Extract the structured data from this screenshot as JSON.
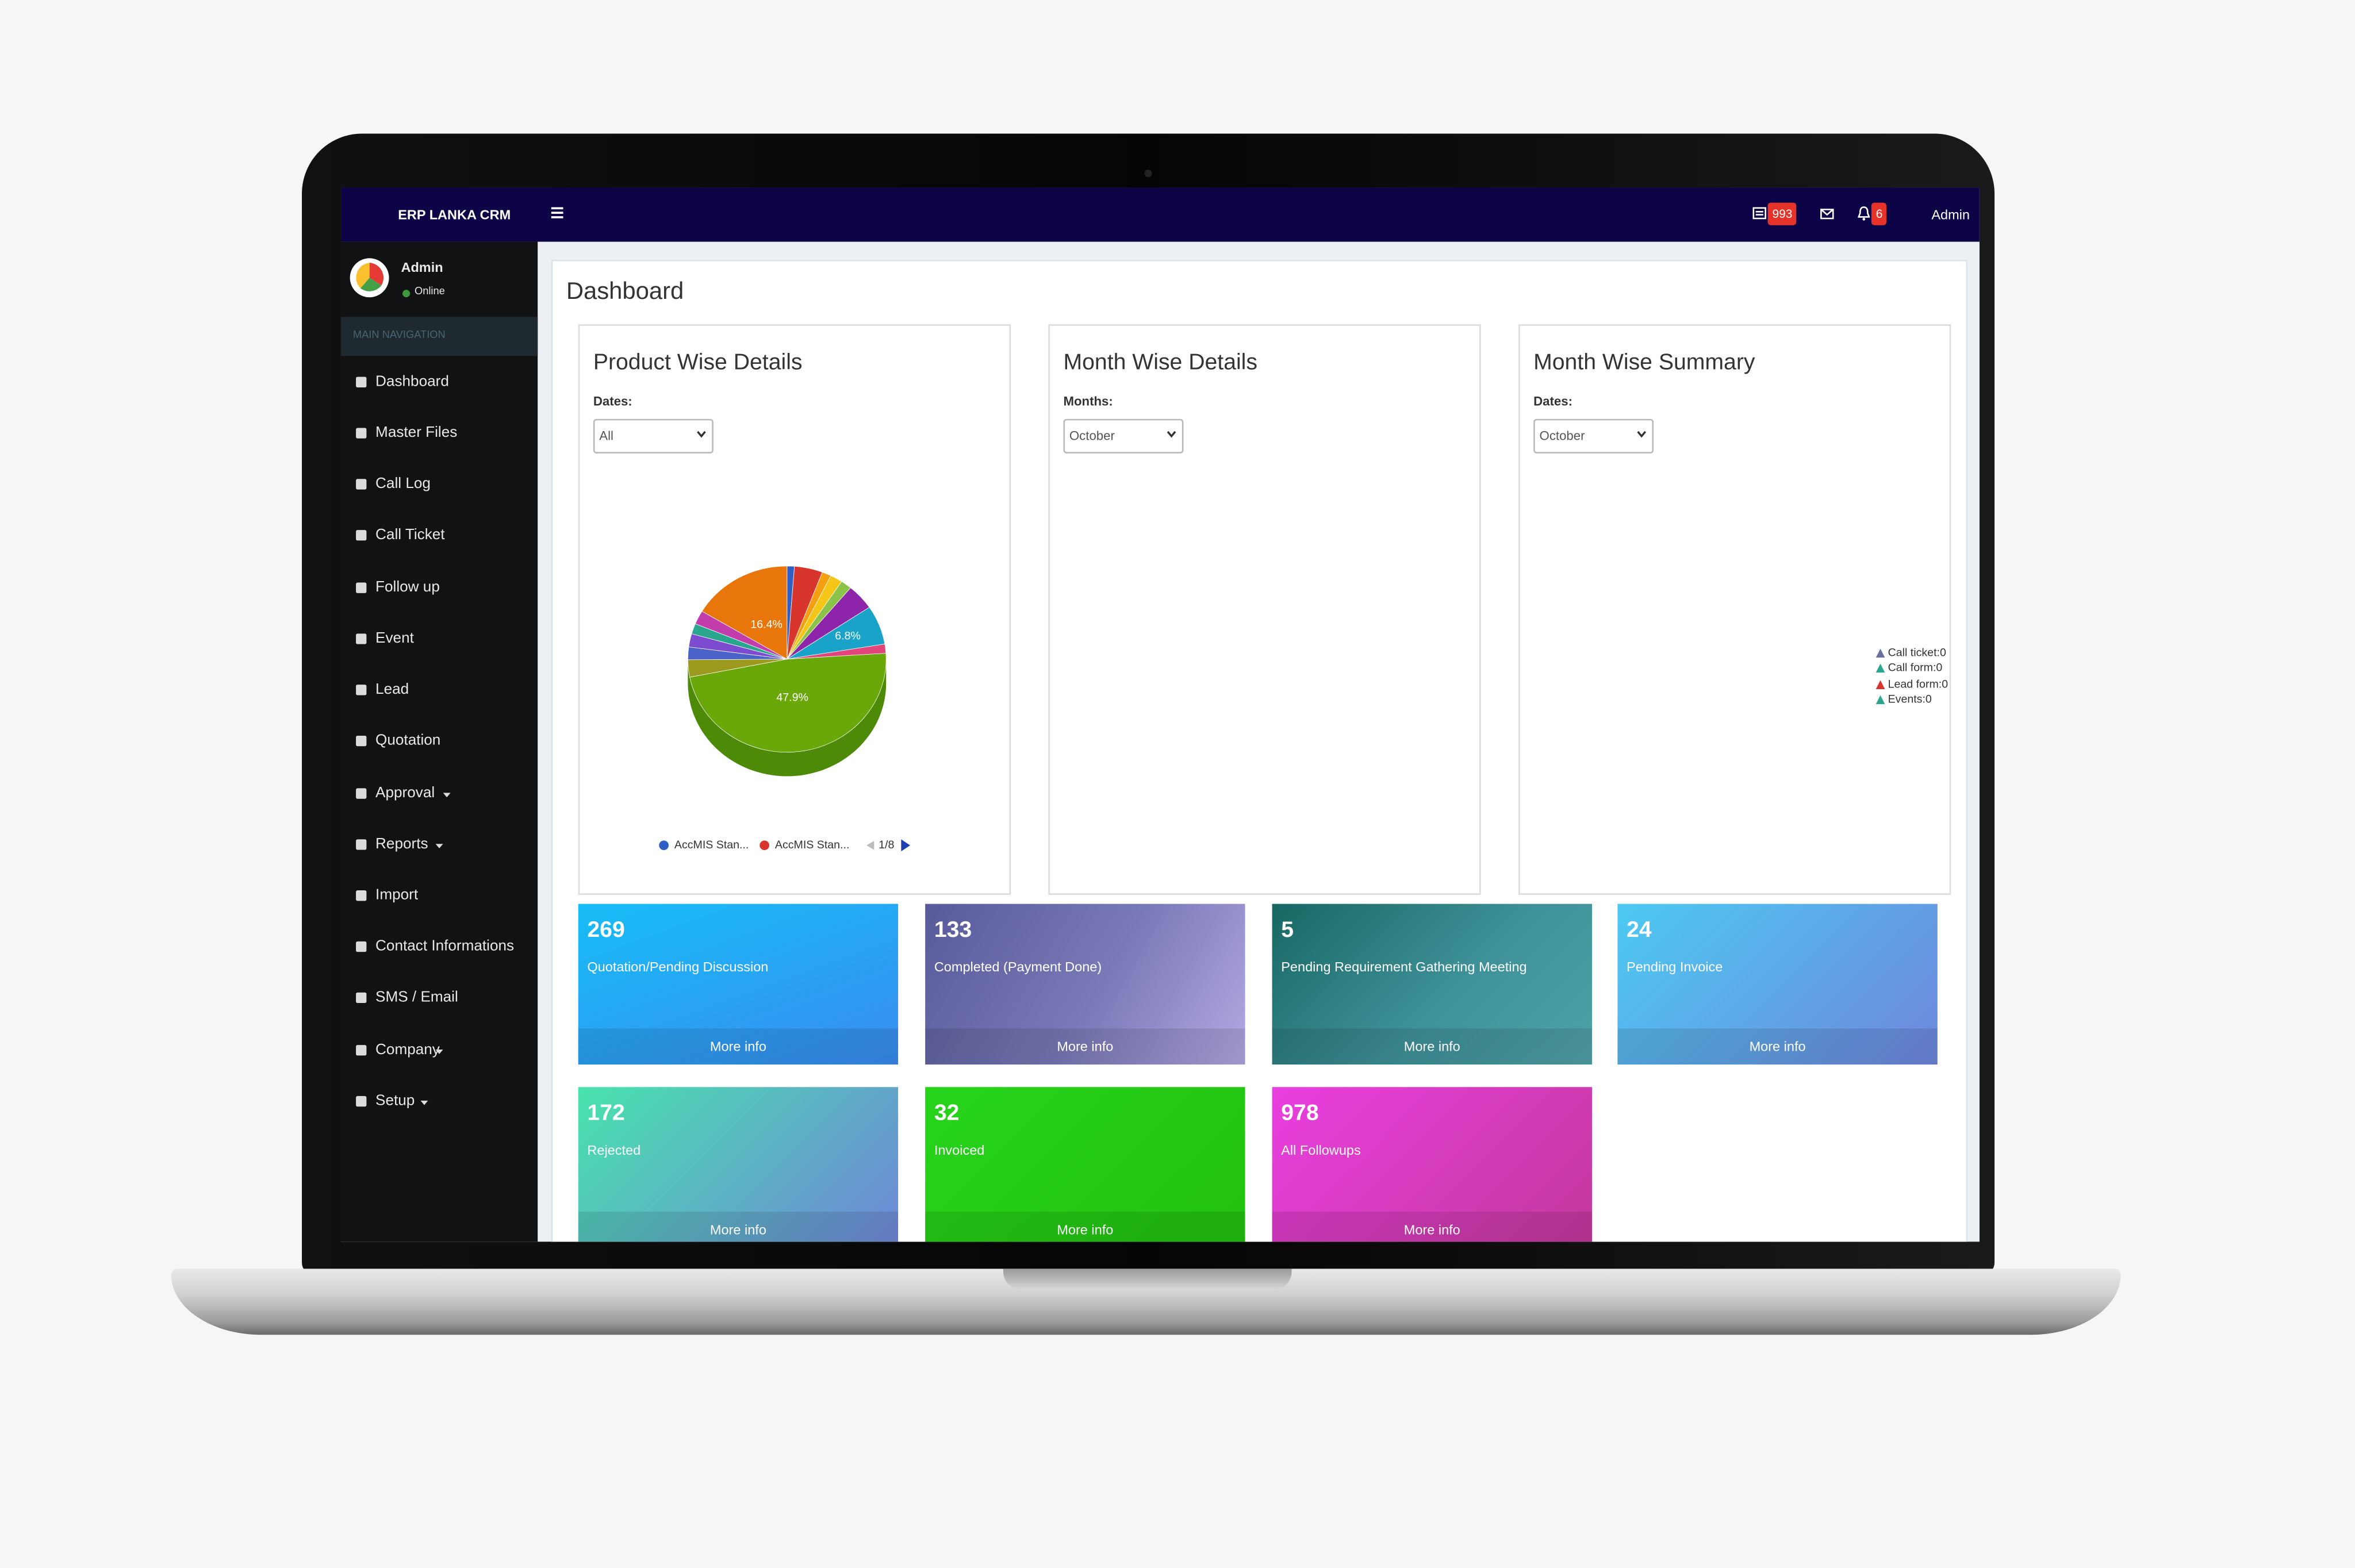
{
  "topbar": {
    "brand": "ERP LANKA CRM",
    "ticket_badge": 993,
    "notification_badge": 6,
    "user": "Admin"
  },
  "sidebar": {
    "user": "Admin",
    "status": "Online",
    "section": "MAIN NAVIGATION",
    "menu": [
      "Dashboard",
      "Master Files",
      "Call Log",
      "Call Ticket",
      "Follow up",
      "Event",
      "Lead",
      "Quotation",
      "Approval",
      "Reports",
      "Import",
      "Contact Informations",
      "SMS / Email",
      "Company",
      "Setup"
    ]
  },
  "content": {
    "title": "Dashboard",
    "panels": [
      {
        "title": "Product Wise Details",
        "filter_label": "Dates:",
        "filter_value": "All"
      },
      {
        "title": "Month Wise Details",
        "filter_label": "Months:",
        "filter_value": "October"
      },
      {
        "title": "Month Wise Summary",
        "filter_label": "Dates:",
        "filter_value": "October",
        "legend": [
          "Call ticket:0",
          "Call form:0",
          "Lead form:0",
          "Events:0"
        ]
      }
    ],
    "tiles": [
      {
        "value": 269,
        "label": "Quotation/Pending Discussion",
        "link": "More info"
      },
      {
        "value": 133,
        "label": "Completed (Payment Done)",
        "link": "More info"
      },
      {
        "value": 5,
        "label": "Pending Requirement Gathering Meeting",
        "link": "More info"
      },
      {
        "value": 24,
        "label": "Pending Invoice",
        "link": "More info"
      },
      {
        "value": 172,
        "label": "Rejected",
        "link": "More info"
      },
      {
        "value": 32,
        "label": "Invoiced",
        "link": "More info"
      },
      {
        "value": 978,
        "label": "All Followups",
        "link": "More info"
      }
    ]
  },
  "chart_data": {
    "type": "pie",
    "categories": [
      "AccMIS Stan...",
      "AccMIS Stan...",
      null,
      null,
      null,
      null,
      null,
      null,
      null,
      null,
      null,
      null,
      null,
      null,
      null
    ],
    "values": [
      1.2,
      4.6,
      1.5,
      2.0,
      1.8,
      4.5,
      6.8,
      1.6,
      47.9,
      3.0,
      2.2,
      2.3,
      1.8,
      2.4,
      16.4
    ],
    "value_labels": [
      null,
      null,
      null,
      null,
      null,
      null,
      "6.8%",
      null,
      "47.9%",
      null,
      null,
      null,
      null,
      null,
      "16.4%"
    ],
    "colors": [
      "#2f5ec4",
      "#d8362d",
      "#f5a011",
      "#f5c518",
      "#8bc34a",
      "#8e24aa",
      "#1aa3c9",
      "#e2457a",
      "#6aa80a",
      "#9c9a1e",
      "#4a63c8",
      "#7d4bd0",
      "#2aa58e",
      "#c23dab",
      "#e8760b"
    ],
    "legend_page": "1/8"
  }
}
